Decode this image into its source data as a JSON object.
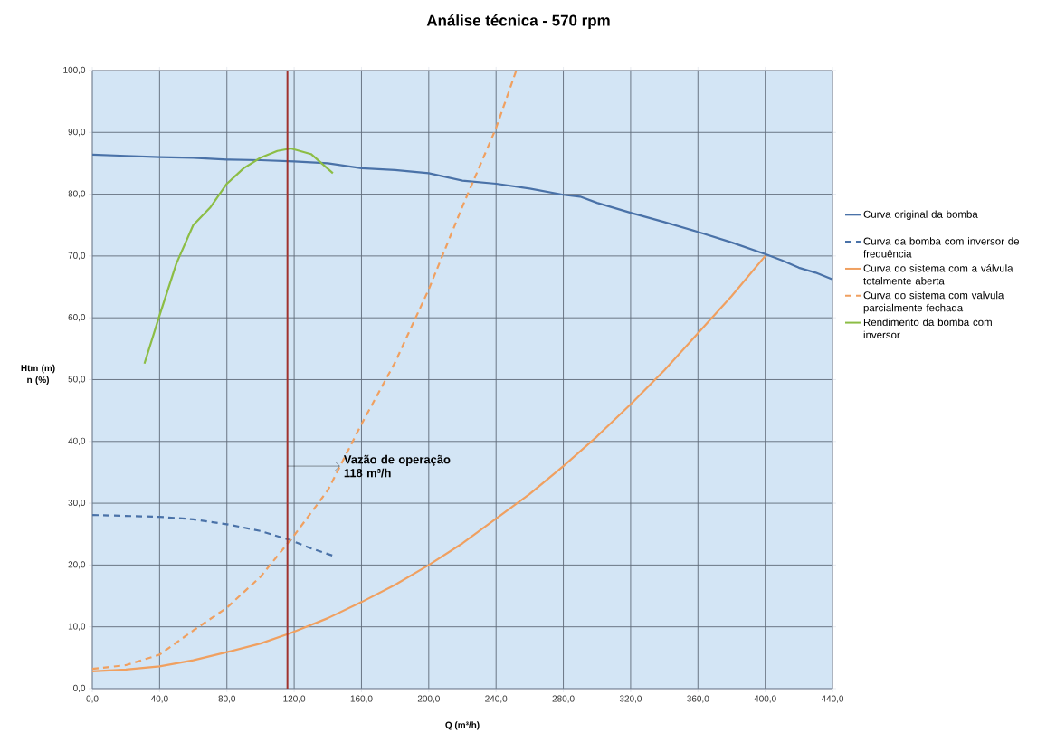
{
  "chart_data": {
    "type": "line",
    "title": "Análise técnica - 570 rpm",
    "xlabel": "Q (m³/h)",
    "ylabel": "Htm (m) n (%)",
    "xlim": [
      0,
      440
    ],
    "ylim": [
      0,
      100
    ],
    "xticks": [
      {
        "value": 0,
        "label": "0,0"
      },
      {
        "value": 40,
        "label": "40,0"
      },
      {
        "value": 80,
        "label": "80,0"
      },
      {
        "value": 120,
        "label": "120,0"
      },
      {
        "value": 160,
        "label": "160,0"
      },
      {
        "value": 200,
        "label": "200,0"
      },
      {
        "value": 240,
        "label": "240,0"
      },
      {
        "value": 280,
        "label": "280,0"
      },
      {
        "value": 320,
        "label": "320,0"
      },
      {
        "value": 360,
        "label": "360,0"
      },
      {
        "value": 400,
        "label": "400,0"
      },
      {
        "value": 440,
        "label": "440,0"
      }
    ],
    "yticks": [
      {
        "value": 0,
        "label": "0,0"
      },
      {
        "value": 10,
        "label": "10,0"
      },
      {
        "value": 20,
        "label": "20,0"
      },
      {
        "value": 30,
        "label": "30,0"
      },
      {
        "value": 40,
        "label": "40,0"
      },
      {
        "value": 50,
        "label": "50,0"
      },
      {
        "value": 60,
        "label": "60,0"
      },
      {
        "value": 70,
        "label": "70,0"
      },
      {
        "value": 80,
        "label": "80,0"
      },
      {
        "value": 90,
        "label": "90,0"
      },
      {
        "value": 100,
        "label": "100,0"
      }
    ],
    "grid": true,
    "legend": "right",
    "marker": "none",
    "series": [
      {
        "name": "Curva original da bomba",
        "color": "#4a72a8",
        "line_style": "solid",
        "x": [
          0,
          20,
          40,
          60,
          80,
          100,
          120,
          140,
          160,
          180,
          200,
          220,
          240,
          260,
          280,
          290,
          300,
          320,
          340,
          360,
          380,
          400,
          410,
          420,
          430,
          440
        ],
        "values": [
          86.4,
          86.2,
          86.0,
          85.9,
          85.6,
          85.5,
          85.3,
          85.0,
          84.2,
          83.9,
          83.4,
          82.2,
          81.7,
          80.9,
          79.9,
          79.6,
          78.6,
          77.0,
          75.5,
          73.9,
          72.2,
          70.3,
          69.3,
          68.1,
          67.3,
          66.2
        ]
      },
      {
        "name": "Curva da bomba com inversor de frequência",
        "color": "#4a72a8",
        "line_style": "dashed",
        "x": [
          0,
          40,
          60,
          80,
          100,
          118,
          130,
          143
        ],
        "values": [
          28.1,
          27.8,
          27.4,
          26.6,
          25.5,
          24.0,
          22.7,
          21.5
        ]
      },
      {
        "name": "Curva do sistema com a válvula totalmente aberta",
        "color": "#f0a060",
        "line_style": "solid",
        "x": [
          0,
          20,
          40,
          60,
          80,
          100,
          118,
          140,
          160,
          180,
          200,
          220,
          240,
          260,
          280,
          300,
          320,
          340,
          360,
          380,
          400
        ],
        "values": [
          2.8,
          3.1,
          3.6,
          4.6,
          5.9,
          7.3,
          9.0,
          11.4,
          14.0,
          16.8,
          20.0,
          23.5,
          27.5,
          31.5,
          36.0,
          40.8,
          46.0,
          51.5,
          57.5,
          63.5,
          70.0
        ]
      },
      {
        "name": "Curva do sistema com valvula parcialmente fechada",
        "color": "#f0a060",
        "line_style": "dashed",
        "x": [
          0,
          20,
          40,
          60,
          80,
          100,
          120,
          140,
          160,
          180,
          200,
          220,
          240,
          252
        ],
        "values": [
          3.2,
          3.8,
          5.5,
          9.4,
          13.1,
          18.1,
          24.8,
          32.1,
          42.8,
          52.8,
          64.6,
          78.0,
          90.7,
          100.0
        ]
      },
      {
        "name": "Rendimento da bomba com inversor",
        "color": "#8cbd45",
        "line_style": "solid",
        "x": [
          31,
          40,
          50,
          60,
          70,
          80,
          90,
          100,
          110,
          118,
          130,
          143
        ],
        "values": [
          52.6,
          60.4,
          68.8,
          75.0,
          77.8,
          81.7,
          84.2,
          85.9,
          87.0,
          87.4,
          86.5,
          83.4
        ]
      }
    ],
    "ref_lines": [
      {
        "axis": "x",
        "value": 116,
        "color": "#a0322e"
      }
    ],
    "annotations": [
      {
        "text": "Vazão de operação 118 m³/h",
        "x": 116,
        "y": 36
      }
    ]
  }
}
